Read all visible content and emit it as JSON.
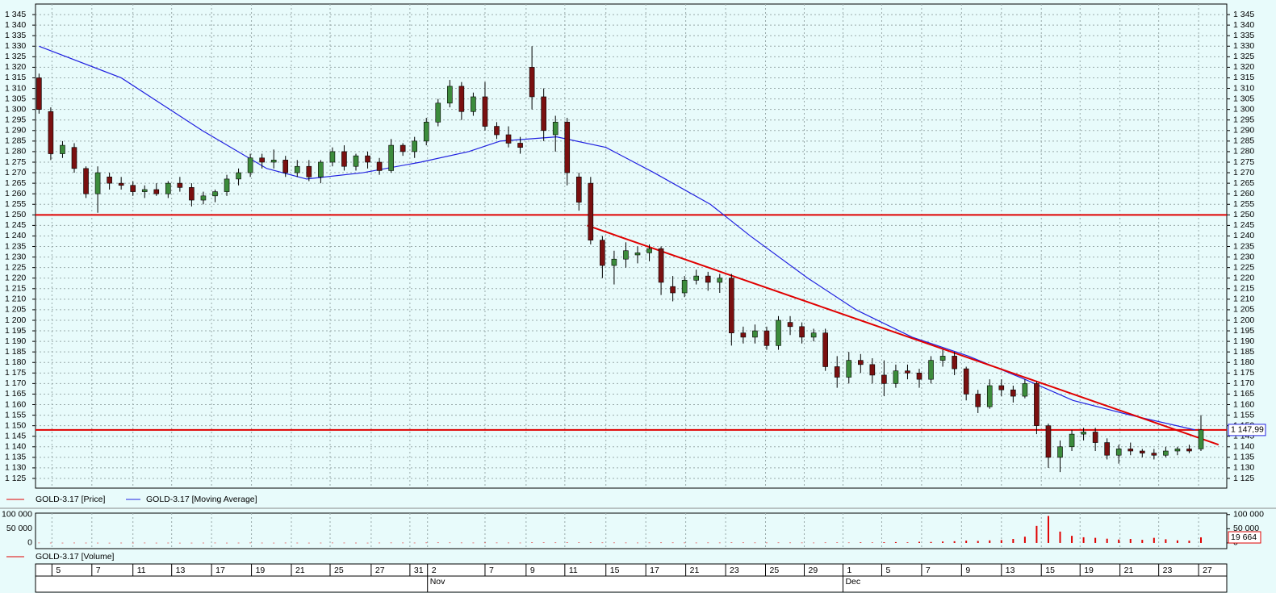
{
  "chart_data": {
    "type": "candlestick",
    "ylim": [
      1120.4,
      1350
    ],
    "xlim": [
      -0.3,
      101.2
    ],
    "grid": true,
    "yticks": [
      {
        "value": 1125,
        "label": "1 125"
      },
      {
        "value": 1130,
        "label": "1 130"
      },
      {
        "value": 1135,
        "label": "1 135"
      },
      {
        "value": 1140,
        "label": "1 140"
      },
      {
        "value": 1145,
        "label": "1 145"
      },
      {
        "value": 1150,
        "label": "1 150"
      },
      {
        "value": 1155,
        "label": "1 155"
      },
      {
        "value": 1160,
        "label": "1 160"
      },
      {
        "value": 1165,
        "label": "1 165"
      },
      {
        "value": 1170,
        "label": "1 170"
      },
      {
        "value": 1175,
        "label": "1 175"
      },
      {
        "value": 1180,
        "label": "1 180"
      },
      {
        "value": 1185,
        "label": "1 185"
      },
      {
        "value": 1190,
        "label": "1 190"
      },
      {
        "value": 1195,
        "label": "1 195"
      },
      {
        "value": 1200,
        "label": "1 200"
      },
      {
        "value": 1205,
        "label": "1 205"
      },
      {
        "value": 1210,
        "label": "1 210"
      },
      {
        "value": 1215,
        "label": "1 215"
      },
      {
        "value": 1220,
        "label": "1 220"
      },
      {
        "value": 1225,
        "label": "1 225"
      },
      {
        "value": 1230,
        "label": "1 230"
      },
      {
        "value": 1235,
        "label": "1 235"
      },
      {
        "value": 1240,
        "label": "1 240"
      },
      {
        "value": 1245,
        "label": "1 245"
      },
      {
        "value": 1250,
        "label": "1 250"
      },
      {
        "value": 1255,
        "label": "1 255"
      },
      {
        "value": 1260,
        "label": "1 260"
      },
      {
        "value": 1265,
        "label": "1 265"
      },
      {
        "value": 1270,
        "label": "1 270"
      },
      {
        "value": 1275,
        "label": "1 275"
      },
      {
        "value": 1280,
        "label": "1 280"
      },
      {
        "value": 1285,
        "label": "1 285"
      },
      {
        "value": 1290,
        "label": "1 290"
      },
      {
        "value": 1295,
        "label": "1 295"
      },
      {
        "value": 1300,
        "label": "1 300"
      },
      {
        "value": 1305,
        "label": "1 305"
      },
      {
        "value": 1310,
        "label": "1 310"
      },
      {
        "value": 1315,
        "label": "1 315"
      },
      {
        "value": 1320,
        "label": "1 320"
      },
      {
        "value": 1325,
        "label": "1 325"
      },
      {
        "value": 1330,
        "label": "1 330"
      },
      {
        "value": 1335,
        "label": "1 335"
      },
      {
        "value": 1340,
        "label": "1 340"
      },
      {
        "value": 1345,
        "label": "1 345"
      }
    ],
    "xticks": [
      {
        "value": 1.1,
        "label": "5"
      },
      {
        "value": 4.5,
        "label": "7"
      },
      {
        "value": 8.0,
        "label": "11"
      },
      {
        "value": 11.3,
        "label": "13"
      },
      {
        "value": 14.7,
        "label": "17"
      },
      {
        "value": 18.1,
        "label": "19"
      },
      {
        "value": 21.5,
        "label": "21"
      },
      {
        "value": 24.8,
        "label": "25"
      },
      {
        "value": 28.3,
        "label": "27"
      },
      {
        "value": 31.6,
        "label": "31"
      },
      {
        "value": 33.1,
        "label": "2"
      },
      {
        "value": 38.0,
        "label": "7"
      },
      {
        "value": 41.5,
        "label": "9"
      },
      {
        "value": 44.8,
        "label": "11"
      },
      {
        "value": 48.3,
        "label": "15"
      },
      {
        "value": 51.7,
        "label": "17"
      },
      {
        "value": 55.1,
        "label": "21"
      },
      {
        "value": 58.5,
        "label": "23"
      },
      {
        "value": 61.9,
        "label": "25"
      },
      {
        "value": 65.2,
        "label": "29"
      },
      {
        "value": 68.5,
        "label": "1"
      },
      {
        "value": 71.8,
        "label": "5"
      },
      {
        "value": 75.2,
        "label": "7"
      },
      {
        "value": 78.6,
        "label": "9"
      },
      {
        "value": 82.0,
        "label": "13"
      },
      {
        "value": 85.4,
        "label": "15"
      },
      {
        "value": 88.7,
        "label": "19"
      },
      {
        "value": 92.1,
        "label": "21"
      },
      {
        "value": 95.4,
        "label": "23"
      },
      {
        "value": 98.8,
        "label": "27"
      }
    ],
    "months": [
      {
        "value": 33.1,
        "label": "Nov"
      },
      {
        "value": 68.5,
        "label": "Dec"
      }
    ],
    "series": [
      {
        "name": "GOLD-3.17 [Price]",
        "color": "#e00000",
        "up_color": "#3c8c3c",
        "down_color": "#7a1010",
        "ohlc": [
          [
            1315,
            1317,
            1298,
            1300
          ],
          [
            1299,
            1301,
            1276,
            1279
          ],
          [
            1279,
            1285,
            1277,
            1283
          ],
          [
            1282,
            1284,
            1270,
            1272
          ],
          [
            1272,
            1273,
            1258,
            1260
          ],
          [
            1260,
            1273,
            1251,
            1270
          ],
          [
            1268,
            1270,
            1262,
            1265
          ],
          [
            1265,
            1268,
            1262,
            1264
          ],
          [
            1264,
            1266,
            1259,
            1261
          ],
          [
            1261,
            1264,
            1258,
            1262
          ],
          [
            1262,
            1265,
            1259,
            1260
          ],
          [
            1260,
            1266,
            1258,
            1265
          ],
          [
            1265,
            1268,
            1261,
            1263
          ],
          [
            1263,
            1265,
            1254,
            1257
          ],
          [
            1257,
            1261,
            1255,
            1259
          ],
          [
            1259,
            1262,
            1256,
            1261
          ],
          [
            1261,
            1269,
            1259,
            1267
          ],
          [
            1267,
            1272,
            1264,
            1270
          ],
          [
            1270,
            1279,
            1268,
            1277
          ],
          [
            1277,
            1279,
            1272,
            1275
          ],
          [
            1275,
            1281,
            1272,
            1276
          ],
          [
            1276,
            1278,
            1268,
            1270
          ],
          [
            1270,
            1276,
            1268,
            1273
          ],
          [
            1273,
            1276,
            1266,
            1268
          ],
          [
            1268,
            1276,
            1265,
            1275
          ],
          [
            1275,
            1282,
            1273,
            1280
          ],
          [
            1280,
            1283,
            1271,
            1273
          ],
          [
            1273,
            1279,
            1271,
            1278
          ],
          [
            1278,
            1280,
            1272,
            1275
          ],
          [
            1275,
            1277,
            1269,
            1271
          ],
          [
            1271,
            1286,
            1270,
            1283
          ],
          [
            1283,
            1284,
            1278,
            1280
          ],
          [
            1280,
            1287,
            1277,
            1285
          ],
          [
            1285,
            1296,
            1283,
            1294
          ],
          [
            1294,
            1305,
            1292,
            1303
          ],
          [
            1303,
            1314,
            1301,
            1311
          ],
          [
            1311,
            1313,
            1295,
            1299
          ],
          [
            1299,
            1308,
            1297,
            1306
          ],
          [
            1306,
            1313,
            1290,
            1292
          ],
          [
            1292,
            1294,
            1286,
            1288
          ],
          [
            1288,
            1292,
            1282,
            1284
          ],
          [
            1284,
            1287,
            1279,
            1282
          ],
          [
            1320,
            1330,
            1300,
            1306
          ],
          [
            1306,
            1310,
            1285,
            1290
          ],
          [
            1288,
            1297,
            1280,
            1294
          ],
          [
            1294,
            1296,
            1264,
            1270
          ],
          [
            1268,
            1270,
            1252,
            1256
          ],
          [
            1265,
            1268,
            1236,
            1238
          ],
          [
            1238,
            1240,
            1220,
            1226
          ],
          [
            1226,
            1233,
            1217,
            1229
          ],
          [
            1229,
            1237,
            1225,
            1233
          ],
          [
            1231,
            1235,
            1227,
            1232
          ],
          [
            1232,
            1236,
            1228,
            1234
          ],
          [
            1234,
            1235,
            1212,
            1218
          ],
          [
            1216,
            1221,
            1209,
            1213
          ],
          [
            1213,
            1221,
            1211,
            1219
          ],
          [
            1219,
            1224,
            1217,
            1221
          ],
          [
            1221,
            1223,
            1214,
            1218
          ],
          [
            1218,
            1222,
            1213,
            1220
          ],
          [
            1220,
            1222,
            1188,
            1194
          ],
          [
            1194,
            1197,
            1189,
            1192
          ],
          [
            1192,
            1198,
            1189,
            1195
          ],
          [
            1195,
            1197,
            1186,
            1188
          ],
          [
            1188,
            1202,
            1186,
            1200
          ],
          [
            1199,
            1202,
            1193,
            1197
          ],
          [
            1197,
            1199,
            1189,
            1192
          ],
          [
            1192,
            1196,
            1190,
            1194
          ],
          [
            1194,
            1196,
            1176,
            1178
          ],
          [
            1178,
            1183,
            1168,
            1173
          ],
          [
            1173,
            1185,
            1170,
            1181
          ],
          [
            1181,
            1184,
            1175,
            1179
          ],
          [
            1179,
            1182,
            1170,
            1174
          ],
          [
            1174,
            1181,
            1164,
            1170
          ],
          [
            1170,
            1179,
            1168,
            1176
          ],
          [
            1176,
            1179,
            1172,
            1175
          ],
          [
            1175,
            1177,
            1168,
            1172
          ],
          [
            1172,
            1183,
            1170,
            1181
          ],
          [
            1181,
            1186,
            1178,
            1183
          ],
          [
            1183,
            1185,
            1174,
            1177
          ],
          [
            1177,
            1178,
            1162,
            1165
          ],
          [
            1165,
            1167,
            1156,
            1159
          ],
          [
            1159,
            1172,
            1158,
            1169
          ],
          [
            1169,
            1172,
            1164,
            1167
          ],
          [
            1167,
            1169,
            1161,
            1164
          ],
          [
            1164,
            1172,
            1163,
            1170
          ],
          [
            1170,
            1171,
            1146,
            1150
          ],
          [
            1150,
            1151,
            1130,
            1135
          ],
          [
            1135,
            1143,
            1128,
            1140
          ],
          [
            1140,
            1148,
            1138,
            1146
          ],
          [
            1146,
            1149,
            1143,
            1147
          ],
          [
            1147,
            1149,
            1138,
            1142
          ],
          [
            1142,
            1144,
            1134,
            1136
          ],
          [
            1136,
            1141,
            1132,
            1139
          ],
          [
            1139,
            1142,
            1136,
            1138
          ],
          [
            1138,
            1139,
            1135,
            1137
          ],
          [
            1137,
            1139,
            1134,
            1136
          ],
          [
            1136,
            1140,
            1135,
            1138
          ],
          [
            1138,
            1140,
            1136,
            1139
          ],
          [
            1139,
            1141,
            1137,
            1138
          ],
          [
            1139,
            1155,
            1138,
            1148
          ]
        ]
      },
      {
        "name": "GOLD-3.17 [Moving Average]",
        "color": "#2020e0",
        "x": [
          0,
          7,
          13.9,
          19.4,
          22.8,
          27.6,
          32.5,
          36.6,
          39.3,
          44.1,
          48.3,
          52.4,
          57.2,
          60.6,
          65.5,
          69.6,
          74.4,
          79.2,
          84,
          88.1,
          93,
          98.5
        ],
        "values": [
          1330,
          1315,
          1290,
          1272,
          1267,
          1270,
          1275,
          1280,
          1285,
          1287,
          1282,
          1270,
          1255,
          1240,
          1220,
          1205,
          1192,
          1183,
          1172,
          1162,
          1155,
          1148
        ]
      }
    ],
    "hlines": {
      "color": "#e00000",
      "values": [
        1250,
        1148
      ]
    },
    "trendline": {
      "color": "#e00000",
      "x": [
        46.7,
        100.5
      ],
      "values": [
        1245,
        1141
      ]
    },
    "price_marker": {
      "value": 1147.99,
      "label": "1 147,99"
    },
    "volume": {
      "name": "GOLD-3.17 [Volume]",
      "color": "#e00000",
      "ylim": [
        -20000,
        105000
      ],
      "yticks": [
        {
          "value": 0,
          "label": "0"
        },
        {
          "value": 50000,
          "label": "50 000"
        },
        {
          "value": 100000,
          "label": "100 000"
        }
      ],
      "values": [
        800,
        600,
        500,
        700,
        600,
        500,
        400,
        600,
        500,
        700,
        500,
        600,
        400,
        500,
        600,
        700,
        500,
        600,
        800,
        600,
        500,
        700,
        600,
        500,
        600,
        800,
        700,
        600,
        500,
        700,
        900,
        800,
        700,
        1000,
        1200,
        1100,
        900,
        800,
        1000,
        900,
        800,
        700,
        1500,
        1300,
        1200,
        1500,
        1400,
        1300,
        1100,
        1000,
        900,
        800,
        1000,
        1200,
        1100,
        900,
        800,
        1000,
        900,
        1300,
        1200,
        1000,
        900,
        1100,
        1000,
        900,
        800,
        1200,
        1300,
        1100,
        2000,
        1500,
        2500,
        3000,
        2000,
        4000,
        3500,
        5000,
        6000,
        8000,
        7000,
        9000,
        10000,
        14000,
        22000,
        60000,
        95000,
        40000,
        25000,
        20000,
        18000,
        15000,
        12000,
        14000,
        11000,
        18000,
        13000,
        9000,
        8000,
        19664
      ],
      "last_marker": {
        "value": 19664,
        "label": "19 664"
      }
    }
  }
}
